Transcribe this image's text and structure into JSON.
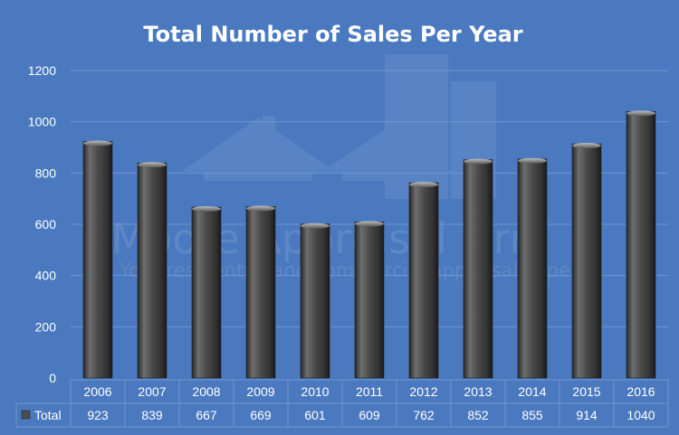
{
  "chart_data": {
    "type": "bar",
    "title": "Total Number of Sales Per Year",
    "categories": [
      "2006",
      "2007",
      "2008",
      "2009",
      "2010",
      "2011",
      "2012",
      "2013",
      "2014",
      "2015",
      "2016"
    ],
    "series": [
      {
        "name": "Total",
        "values": [
          923,
          839,
          667,
          669,
          601,
          609,
          762,
          852,
          855,
          914,
          1040
        ]
      }
    ],
    "ylim": [
      0,
      1200
    ],
    "yticks": [
      0,
      200,
      400,
      600,
      800,
      1000,
      1200
    ],
    "grid": true,
    "data_table": true,
    "colors": {
      "background": "#4a79bf",
      "bar": "#4d4d4d",
      "gridline": "#6e97d2",
      "text": "#ffffff"
    }
  },
  "watermark": {
    "name": "Moore Appraisal Firm",
    "tagline": "Your residential and commercial appraisal experts"
  }
}
